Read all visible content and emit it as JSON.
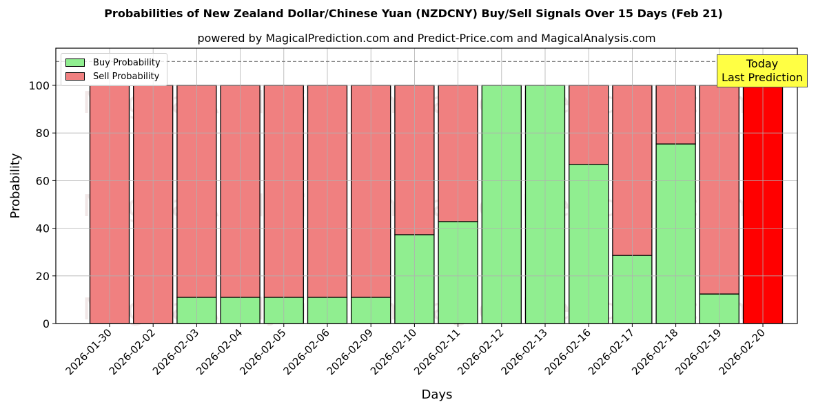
{
  "title": "Probabilities of New Zealand Dollar/Chinese Yuan (NZDCNY) Buy/Sell Signals Over 15 Days (Feb 21)",
  "subtitle": "powered by MagicalPrediction.com and Predict-Price.com and MagicalAnalysis.com",
  "legend": {
    "buy_label": "Buy Probability",
    "sell_label": "Sell Probability"
  },
  "annotation": {
    "line1": "Today",
    "line2": "Last Prediction"
  },
  "colors": {
    "buy": "#90ee90",
    "sell": "#f08080",
    "today": "#ff0000",
    "annotation_bg": "#ffff44"
  },
  "watermarks": [
    "MagicalAnalysis.com",
    "MagicalPrediction.com"
  ],
  "chart_data": {
    "type": "bar",
    "stacked": true,
    "title": "Probabilities of New Zealand Dollar/Chinese Yuan (NZDCNY) Buy/Sell Signals Over 15 Days (Feb 21)",
    "subtitle": "powered by MagicalPrediction.com and Predict-Price.com and MagicalAnalysis.com",
    "xlabel": "Days",
    "ylabel": "Probability",
    "ylim": [
      0,
      115
    ],
    "yticks": [
      0,
      20,
      40,
      60,
      80,
      100
    ],
    "reference_line": 110,
    "grid": true,
    "legend_position": "upper left",
    "categories": [
      "2026-01-30",
      "2026-02-02",
      "2026-02-03",
      "2026-02-04",
      "2026-02-05",
      "2026-02-06",
      "2026-02-09",
      "2026-02-10",
      "2026-02-11",
      "2026-02-12",
      "2026-02-13",
      "2026-02-16",
      "2026-02-17",
      "2026-02-18",
      "2026-02-19",
      "2026-02-20"
    ],
    "series": [
      {
        "name": "Buy Probability",
        "values": [
          0,
          0,
          11,
          11,
          11,
          11,
          11,
          37.3,
          42.8,
          100,
          100,
          66.8,
          28.6,
          75.4,
          12.4,
          0
        ]
      },
      {
        "name": "Sell Probability",
        "values": [
          100,
          100,
          89,
          89,
          89,
          89,
          89,
          62.7,
          57.2,
          0,
          0,
          33.2,
          71.4,
          24.6,
          87.6,
          100
        ]
      }
    ],
    "highlight": {
      "category": "2026-02-20",
      "label": "Today Last Prediction",
      "color": "#ff0000"
    }
  }
}
